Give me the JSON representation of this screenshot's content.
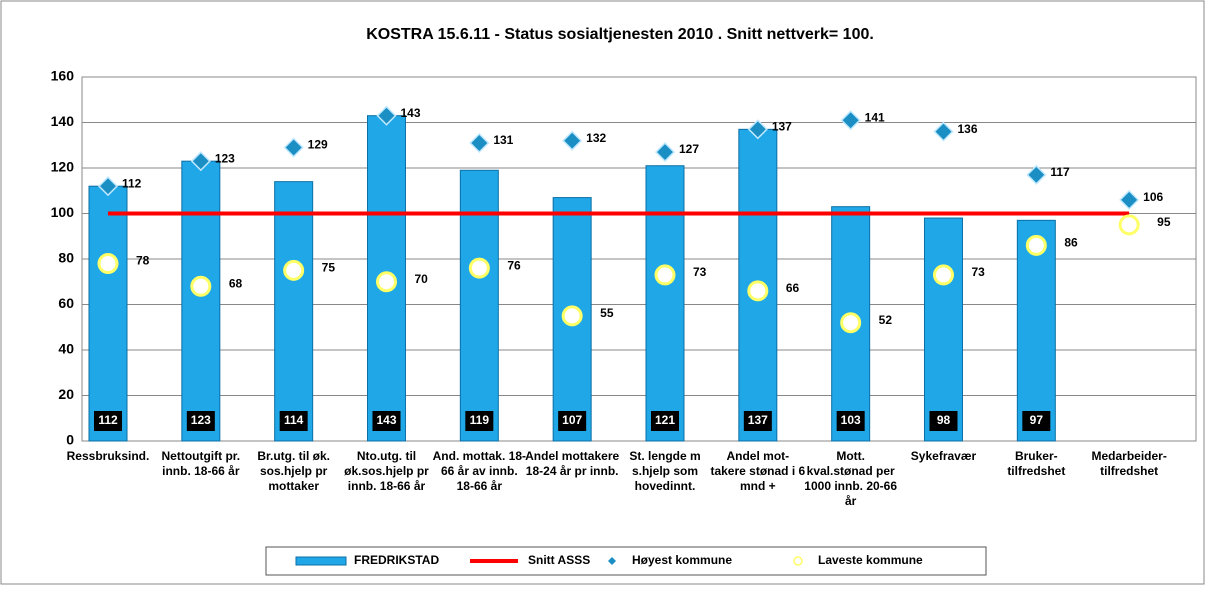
{
  "chart_data": {
    "type": "bar",
    "title": "KOSTRA 15.6.11 - Status sosialtjenesten 2010 . Snitt nettverk= 100.",
    "categories": [
      [
        "Ressbruksind."
      ],
      [
        "Nettoutgift pr.",
        "innb. 18-66 år"
      ],
      [
        "Br.utg. til øk.",
        "sos.hjelp pr",
        "mottaker"
      ],
      [
        "Nto.utg. til",
        "øk.sos.hjelp pr",
        "innb. 18-66 år"
      ],
      [
        "And. mottak. 18-",
        "66 år av innb.",
        "18-66 år"
      ],
      [
        "Andel mottakere",
        "18-24 år pr innb."
      ],
      [
        "St. lengde m",
        "s.hjelp som",
        "hovedinnt."
      ],
      [
        "Andel mot-",
        "takere stønad i 6",
        "mnd +"
      ],
      [
        "Mott.",
        "kval.stønad per",
        "1000 innb. 20-66",
        "år"
      ],
      [
        "Sykefravær"
      ],
      [
        "Bruker-",
        "tilfredshet"
      ],
      [
        "Medarbeider-",
        "tilfredshet"
      ]
    ],
    "series": [
      {
        "name": "FREDRIKSTAD",
        "color": "#1fa7e8",
        "kind": "bar",
        "values": [
          112,
          123,
          114,
          143,
          119,
          107,
          121,
          137,
          103,
          98,
          97,
          null
        ]
      },
      {
        "name": "Snitt ASSS",
        "color": "#ff0000",
        "kind": "line",
        "values": [
          100,
          100,
          100,
          100,
          100,
          100,
          100,
          100,
          100,
          100,
          100,
          100
        ]
      },
      {
        "name": "Høyest kommune",
        "color": "#1b8fc4",
        "kind": "diamond",
        "values": [
          112,
          123,
          129,
          143,
          131,
          132,
          127,
          137,
          141,
          136,
          117,
          106
        ]
      },
      {
        "name": "Laveste kommune",
        "color": "#ffff66",
        "kind": "circle",
        "values": [
          78,
          68,
          75,
          70,
          76,
          55,
          73,
          66,
          52,
          73,
          86,
          95
        ]
      }
    ],
    "ylim": [
      0,
      160
    ],
    "yticks": [
      0,
      20,
      40,
      60,
      80,
      100,
      120,
      140,
      160
    ],
    "grid": true
  }
}
